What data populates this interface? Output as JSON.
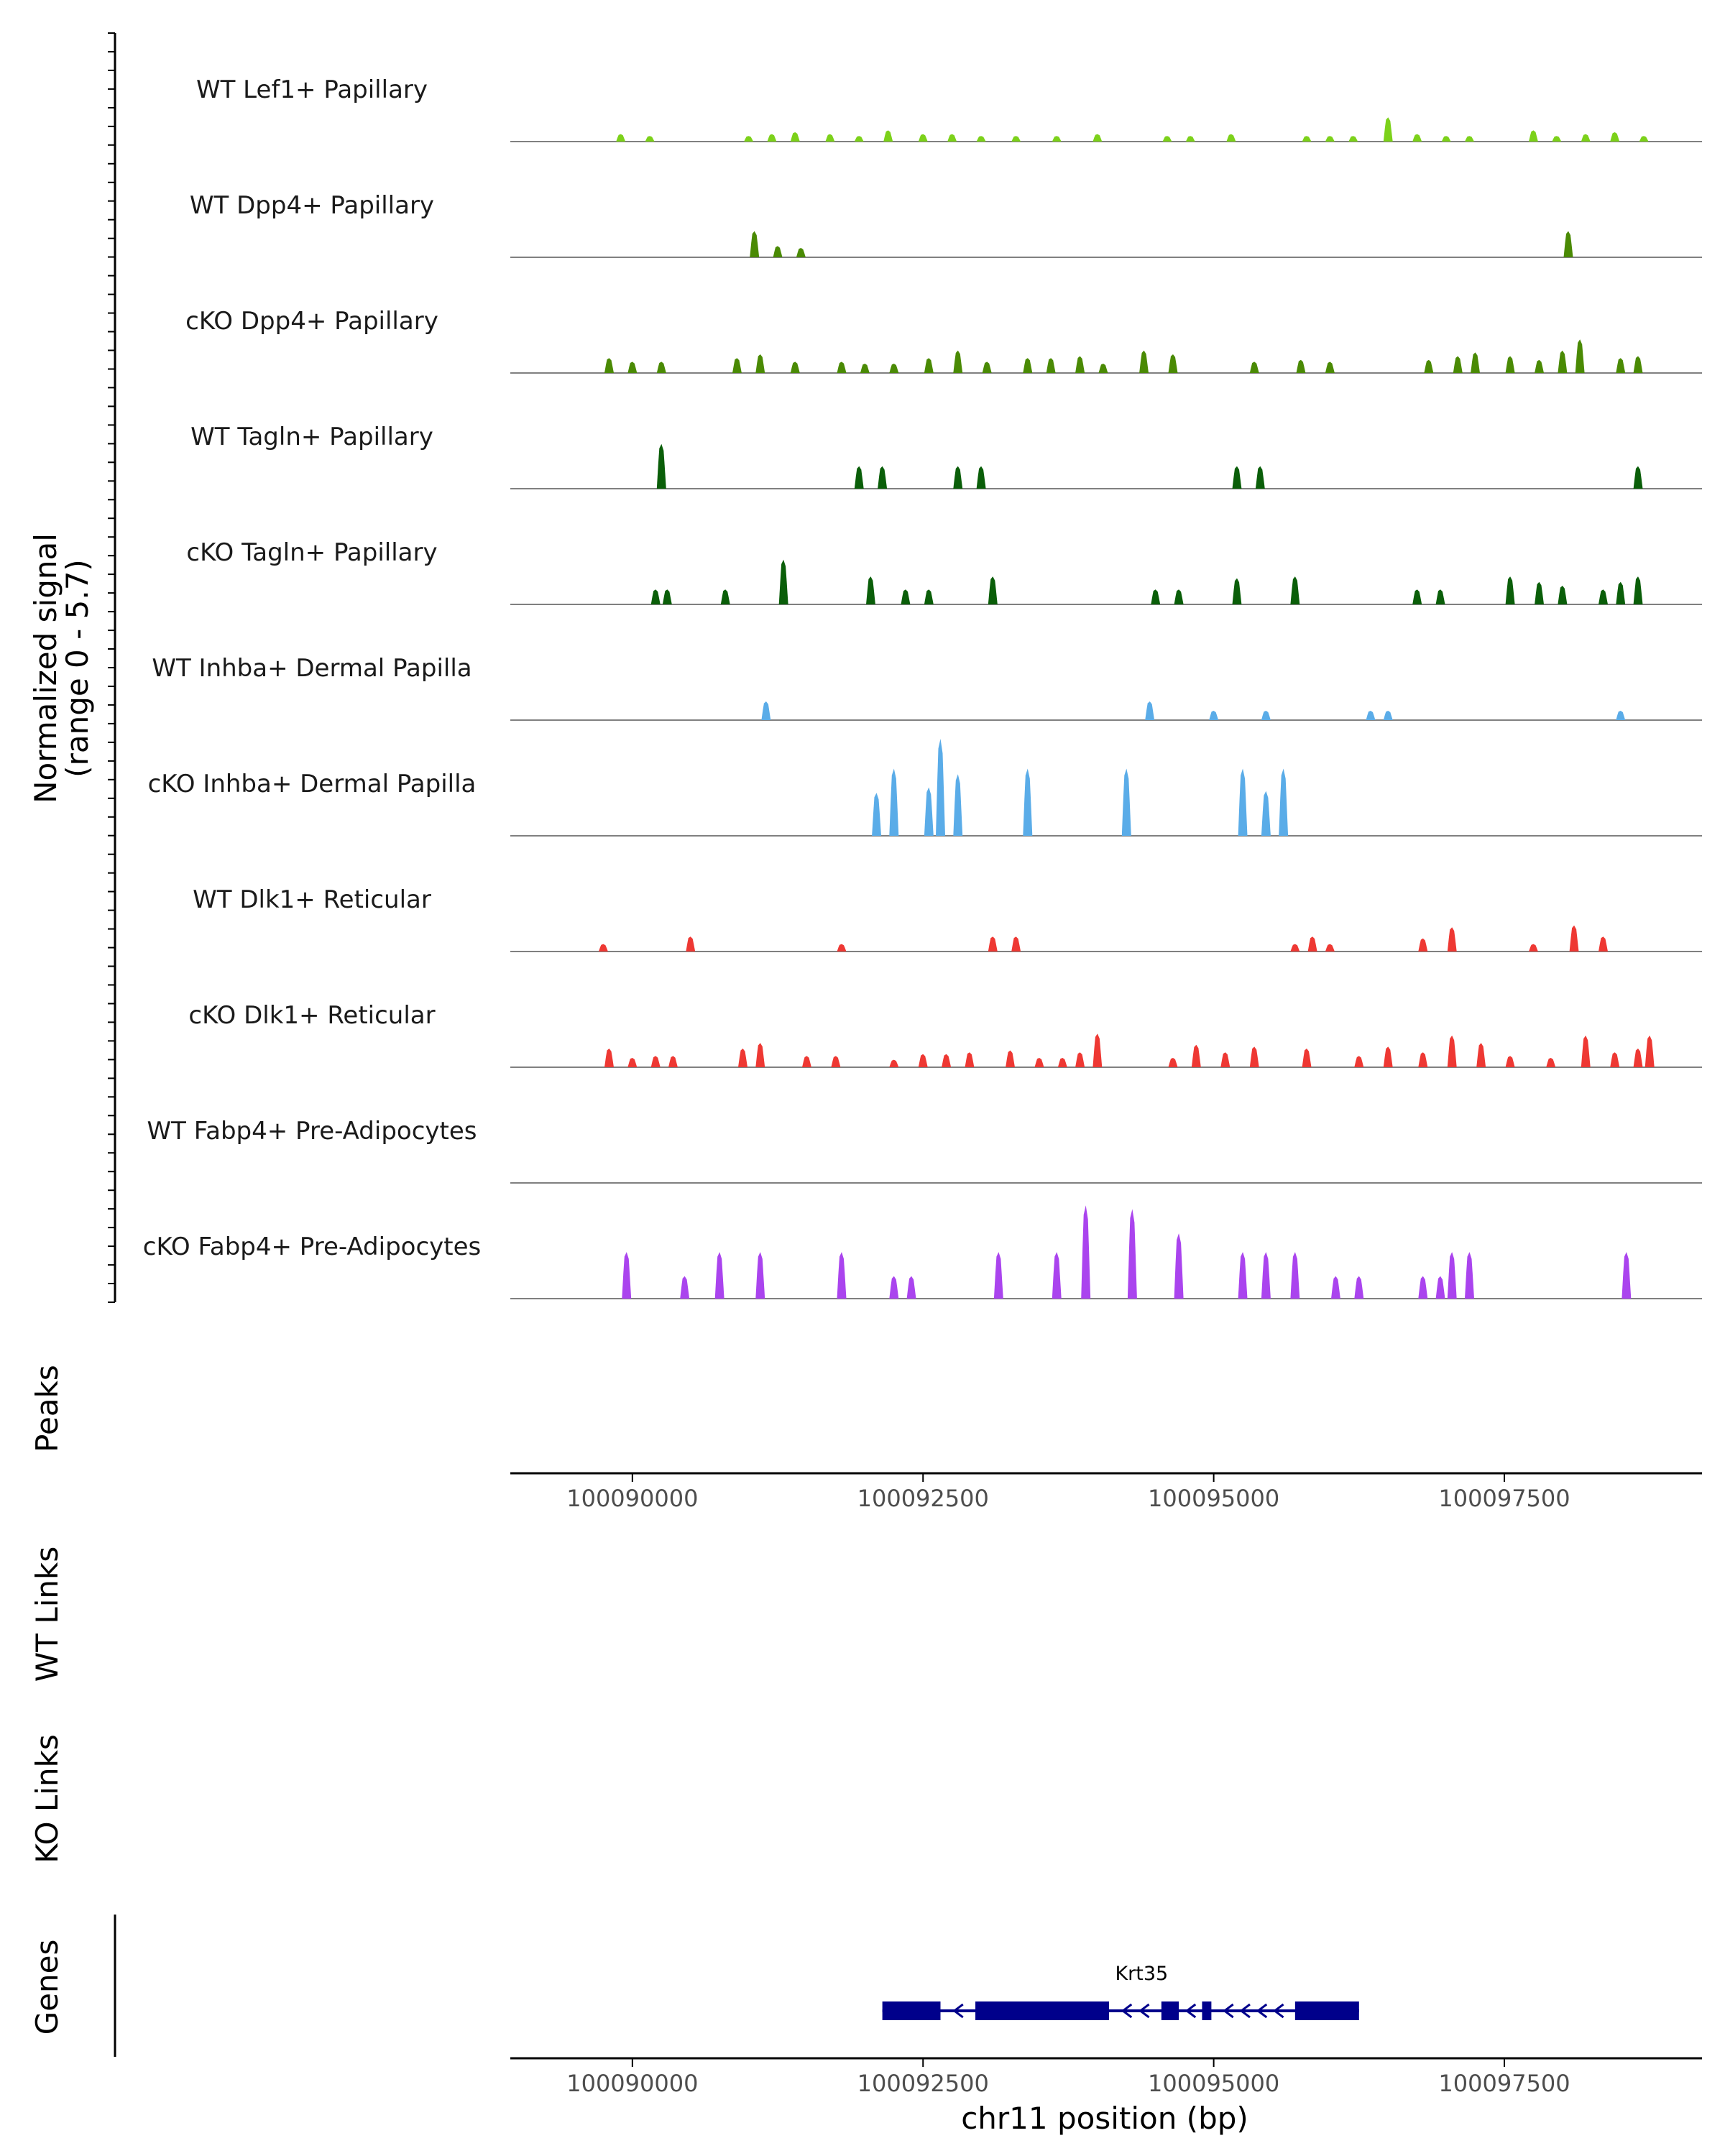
{
  "chart_data": {
    "type": "area",
    "title": "",
    "y_axis_label": [
      "Normalized signal",
      "(range 0 - 5.7)"
    ],
    "y_range": [
      0,
      5.7
    ],
    "x_range": [
      100088950,
      100099200
    ],
    "x_ticks": [
      100090000,
      100092500,
      100095000,
      100097500
    ],
    "x_tick_labels": [
      "100090000",
      "100092500",
      "100095000",
      "100097500"
    ],
    "xlabel": "chr11 position (bp)",
    "tracks": [
      {
        "name": "WT Lef1+ Papillary",
        "color": "#7cd11a",
        "peaks": [
          [
            100089900,
            0.4
          ],
          [
            100090150,
            0.3
          ],
          [
            100091000,
            0.3
          ],
          [
            100091200,
            0.4
          ],
          [
            100091400,
            0.5
          ],
          [
            100091700,
            0.4
          ],
          [
            100091950,
            0.3
          ],
          [
            100092200,
            0.6
          ],
          [
            100092500,
            0.4
          ],
          [
            100092750,
            0.4
          ],
          [
            100093000,
            0.3
          ],
          [
            100093300,
            0.3
          ],
          [
            100093650,
            0.3
          ],
          [
            100094000,
            0.4
          ],
          [
            100094600,
            0.3
          ],
          [
            100094800,
            0.3
          ],
          [
            100095150,
            0.4
          ],
          [
            100095800,
            0.3
          ],
          [
            100096000,
            0.3
          ],
          [
            100096200,
            0.3
          ],
          [
            100096500,
            1.3
          ],
          [
            100096750,
            0.4
          ],
          [
            100097000,
            0.3
          ],
          [
            100097200,
            0.3
          ],
          [
            100097750,
            0.6
          ],
          [
            100097950,
            0.3
          ],
          [
            100098200,
            0.4
          ],
          [
            100098450,
            0.5
          ],
          [
            100098700,
            0.3
          ]
        ]
      },
      {
        "name": "WT Dpp4+ Papillary",
        "color": "#4a8a04",
        "peaks": [
          [
            100091050,
            1.4
          ],
          [
            100091250,
            0.6
          ],
          [
            100091450,
            0.5
          ],
          [
            100098050,
            1.4
          ]
        ]
      },
      {
        "name": "cKO Dpp4+ Papillary",
        "color": "#4a8a04",
        "peaks": [
          [
            100089800,
            0.8
          ],
          [
            100090000,
            0.6
          ],
          [
            100090250,
            0.6
          ],
          [
            100090900,
            0.8
          ],
          [
            100091100,
            1.0
          ],
          [
            100091400,
            0.6
          ],
          [
            100091800,
            0.6
          ],
          [
            100092000,
            0.5
          ],
          [
            100092250,
            0.5
          ],
          [
            100092550,
            0.8
          ],
          [
            100092800,
            1.2
          ],
          [
            100093050,
            0.6
          ],
          [
            100093400,
            0.8
          ],
          [
            100093600,
            0.8
          ],
          [
            100093850,
            0.9
          ],
          [
            100094050,
            0.5
          ],
          [
            100094400,
            1.2
          ],
          [
            100094650,
            1.0
          ],
          [
            100095350,
            0.6
          ],
          [
            100095750,
            0.7
          ],
          [
            100096000,
            0.6
          ],
          [
            100096850,
            0.7
          ],
          [
            100097100,
            0.9
          ],
          [
            100097250,
            1.1
          ],
          [
            100097550,
            0.9
          ],
          [
            100097800,
            0.7
          ],
          [
            100098000,
            1.2
          ],
          [
            100098150,
            1.8
          ],
          [
            100098500,
            0.8
          ],
          [
            100098650,
            0.9
          ]
        ]
      },
      {
        "name": "WT Tagln+ Papillary",
        "color": "#0a5e09",
        "peaks": [
          [
            100090250,
            2.4
          ],
          [
            100091950,
            1.2
          ],
          [
            100092150,
            1.2
          ],
          [
            100092800,
            1.2
          ],
          [
            100093000,
            1.2
          ],
          [
            100095200,
            1.2
          ],
          [
            100095400,
            1.2
          ],
          [
            100098650,
            1.2
          ]
        ]
      },
      {
        "name": "cKO Tagln+ Papillary",
        "color": "#0a5e09",
        "peaks": [
          [
            100090200,
            0.8
          ],
          [
            100090300,
            0.8
          ],
          [
            100090800,
            0.8
          ],
          [
            100091300,
            2.4
          ],
          [
            100092050,
            1.5
          ],
          [
            100092350,
            0.8
          ],
          [
            100092550,
            0.8
          ],
          [
            100093100,
            1.5
          ],
          [
            100094500,
            0.8
          ],
          [
            100094700,
            0.8
          ],
          [
            100095200,
            1.4
          ],
          [
            100095700,
            1.5
          ],
          [
            100096750,
            0.8
          ],
          [
            100096950,
            0.8
          ],
          [
            100097550,
            1.5
          ],
          [
            100097800,
            1.2
          ],
          [
            100098000,
            1.0
          ],
          [
            100098350,
            0.8
          ],
          [
            100098500,
            1.2
          ],
          [
            100098650,
            1.5
          ]
        ]
      },
      {
        "name": "WT Inhba+ Dermal Papilla",
        "color": "#5aace8",
        "peaks": [
          [
            100091150,
            1.0
          ],
          [
            100094450,
            1.0
          ],
          [
            100095000,
            0.5
          ],
          [
            100095450,
            0.5
          ],
          [
            100096350,
            0.5
          ],
          [
            100096500,
            0.5
          ],
          [
            100098500,
            0.5
          ]
        ]
      },
      {
        "name": "cKO Inhba+ Dermal Papilla",
        "color": "#5aace8",
        "peaks": [
          [
            100092100,
            2.3
          ],
          [
            100092250,
            3.6
          ],
          [
            100092550,
            2.6
          ],
          [
            100092650,
            5.2
          ],
          [
            100092800,
            3.3
          ],
          [
            100093400,
            3.6
          ],
          [
            100094250,
            3.6
          ],
          [
            100095250,
            3.6
          ],
          [
            100095450,
            2.4
          ],
          [
            100095600,
            3.6
          ]
        ]
      },
      {
        "name": "WT Dlk1+ Reticular",
        "color": "#ee3833",
        "peaks": [
          [
            100089750,
            0.4
          ],
          [
            100090500,
            0.8
          ],
          [
            100091800,
            0.4
          ],
          [
            100093100,
            0.8
          ],
          [
            100093300,
            0.8
          ],
          [
            100095700,
            0.4
          ],
          [
            100095850,
            0.8
          ],
          [
            100096000,
            0.4
          ],
          [
            100096800,
            0.7
          ],
          [
            100097050,
            1.3
          ],
          [
            100097750,
            0.4
          ],
          [
            100098100,
            1.4
          ],
          [
            100098350,
            0.8
          ]
        ]
      },
      {
        "name": "cKO Dlk1+ Reticular",
        "color": "#ee3833",
        "peaks": [
          [
            100089800,
            1.0
          ],
          [
            100090000,
            0.5
          ],
          [
            100090200,
            0.6
          ],
          [
            100090350,
            0.6
          ],
          [
            100090950,
            1.0
          ],
          [
            100091100,
            1.3
          ],
          [
            100091500,
            0.6
          ],
          [
            100091750,
            0.6
          ],
          [
            100092250,
            0.4
          ],
          [
            100092500,
            0.7
          ],
          [
            100092700,
            0.7
          ],
          [
            100092900,
            0.8
          ],
          [
            100093250,
            0.9
          ],
          [
            100093500,
            0.5
          ],
          [
            100093700,
            0.5
          ],
          [
            100093850,
            0.8
          ],
          [
            100094000,
            1.8
          ],
          [
            100094650,
            0.5
          ],
          [
            100094850,
            1.2
          ],
          [
            100095100,
            0.8
          ],
          [
            100095350,
            1.1
          ],
          [
            100095800,
            1.0
          ],
          [
            100096250,
            0.6
          ],
          [
            100096500,
            1.1
          ],
          [
            100096800,
            0.8
          ],
          [
            100097050,
            1.7
          ],
          [
            100097300,
            1.3
          ],
          [
            100097550,
            0.6
          ],
          [
            100097900,
            0.5
          ],
          [
            100098200,
            1.7
          ],
          [
            100098450,
            0.8
          ],
          [
            100098650,
            1.0
          ],
          [
            100098750,
            1.7
          ]
        ]
      },
      {
        "name": "WT Fabp4+ Pre-Adipocytes",
        "color": "#aa44ee",
        "peaks": []
      },
      {
        "name": "cKO Fabp4+ Pre-Adipocytes",
        "color": "#aa44ee",
        "peaks": [
          [
            100089950,
            2.5
          ],
          [
            100090450,
            1.2
          ],
          [
            100090750,
            2.5
          ],
          [
            100091100,
            2.5
          ],
          [
            100091800,
            2.5
          ],
          [
            100092250,
            1.2
          ],
          [
            100092400,
            1.2
          ],
          [
            100093150,
            2.5
          ],
          [
            100093650,
            2.5
          ],
          [
            100093900,
            5.0
          ],
          [
            100094300,
            4.8
          ],
          [
            100094700,
            3.5
          ],
          [
            100095250,
            2.5
          ],
          [
            100095450,
            2.5
          ],
          [
            100095700,
            2.5
          ],
          [
            100096050,
            1.2
          ],
          [
            100096250,
            1.2
          ],
          [
            100096800,
            1.2
          ],
          [
            100096950,
            1.2
          ],
          [
            100097050,
            2.5
          ],
          [
            100097200,
            2.5
          ],
          [
            100098550,
            2.5
          ]
        ]
      }
    ],
    "panels": {
      "peaks": "Peaks",
      "wt_links": "WT Links",
      "ko_links": "KO Links",
      "genes": "Genes"
    },
    "gene": {
      "name": "Krt35",
      "start": 100092150,
      "end": 100096250,
      "strand": "-",
      "exons": [
        [
          100092150,
          100092650
        ],
        [
          100092950,
          100094100
        ],
        [
          100094550,
          100094700
        ],
        [
          100094900,
          100094980
        ],
        [
          100095700,
          100096250
        ]
      ]
    }
  }
}
